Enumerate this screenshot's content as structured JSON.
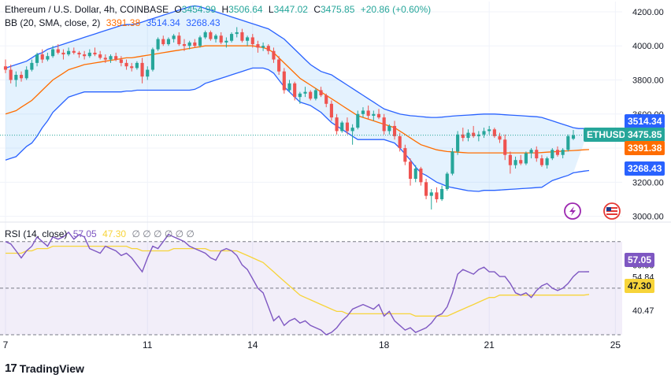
{
  "header": {
    "symbol": "Ethereum / U.S. Dollar, 4h, COINBASE",
    "o_label": "O",
    "open": "3454.99",
    "h_label": "H",
    "high": "3506.64",
    "l_label": "L",
    "low": "3447.02",
    "c_label": "C",
    "close": "3475.85",
    "change": "+20.86 (+0.60%)",
    "bb_label": "BB (20, SMA, close, 2)",
    "bb_mid": "3391.38",
    "bb_upper": "3514.34",
    "bb_lower": "3268.43",
    "rsi_label": "RSI (14, close)",
    "rsi_value": "57.05",
    "rsi_ma": "47.30",
    "rsi_placeholders": "∅ ∅ ∅ ∅ ∅ ∅"
  },
  "badges": {
    "ticker": "ETHUSD",
    "upper": "3514.34",
    "last": "3475.85",
    "mid": "3391.38",
    "lower": "3268.43",
    "rsi": "57.05",
    "rsi_ma": "47.30"
  },
  "branding": {
    "text": "TradingView"
  },
  "colors": {
    "up": "#26a69a",
    "down": "#ef5350",
    "bb_band": "#2962ff",
    "bb_mid": "#ff6d00",
    "rsi": "#7e57c2",
    "rsi_ma": "#f7d43a",
    "ticker_bg": "#26a69a"
  },
  "chart_data": [
    {
      "type": "candlestick",
      "title": "Ethereum / U.S. Dollar, 4h, COINBASE",
      "x_tick_labels": [
        "7",
        "11",
        "14",
        "18",
        "21",
        "25"
      ],
      "x_tick_index": [
        0,
        27,
        47,
        72,
        92,
        116
      ],
      "y_ticks": [
        3000,
        3200,
        3400,
        3600,
        3800,
        4000,
        4200
      ],
      "ylim": [
        2975,
        4260
      ],
      "last_price": 3475.85,
      "candles": [
        [
          3880,
          3920,
          3840,
          3860
        ],
        [
          3860,
          3890,
          3780,
          3800
        ],
        [
          3800,
          3850,
          3760,
          3830
        ],
        [
          3830,
          3850,
          3790,
          3810
        ],
        [
          3810,
          3880,
          3800,
          3860
        ],
        [
          3860,
          3920,
          3850,
          3900
        ],
        [
          3900,
          3960,
          3880,
          3950
        ],
        [
          3950,
          3980,
          3900,
          3920
        ],
        [
          3920,
          3960,
          3910,
          3940
        ],
        [
          3940,
          4000,
          3930,
          3980
        ],
        [
          3980,
          4010,
          3950,
          3960
        ],
        [
          3960,
          3980,
          3920,
          3950
        ],
        [
          3950,
          3990,
          3940,
          3970
        ],
        [
          3970,
          3990,
          3950,
          3960
        ],
        [
          3960,
          3970,
          3930,
          3950
        ],
        [
          3950,
          3970,
          3920,
          3940
        ],
        [
          3940,
          3980,
          3930,
          3960
        ],
        [
          3960,
          3990,
          3940,
          3950
        ],
        [
          3950,
          3970,
          3920,
          3930
        ],
        [
          3930,
          3950,
          3900,
          3920
        ],
        [
          3920,
          3950,
          3900,
          3940
        ],
        [
          3940,
          3960,
          3910,
          3920
        ],
        [
          3920,
          3940,
          3880,
          3900
        ],
        [
          3900,
          3920,
          3860,
          3880
        ],
        [
          3880,
          3900,
          3850,
          3870
        ],
        [
          3870,
          3910,
          3860,
          3900
        ],
        [
          3900,
          3930,
          3780,
          3820
        ],
        [
          3820,
          3880,
          3800,
          3860
        ],
        [
          3860,
          3990,
          3850,
          3980
        ],
        [
          3980,
          4050,
          3970,
          4040
        ],
        [
          4040,
          4060,
          4000,
          4010
        ],
        [
          4010,
          4050,
          4000,
          4040
        ],
        [
          4040,
          4070,
          4020,
          4060
        ],
        [
          4060,
          4080,
          4000,
          4010
        ],
        [
          4010,
          4040,
          3970,
          4000
        ],
        [
          4000,
          4030,
          3980,
          4020
        ],
        [
          4020,
          4040,
          3990,
          4000
        ],
        [
          4000,
          4060,
          3990,
          4050
        ],
        [
          4050,
          4090,
          4040,
          4080
        ],
        [
          4080,
          4090,
          4030,
          4040
        ],
        [
          4040,
          4070,
          4020,
          4060
        ],
        [
          4060,
          4080,
          4010,
          4020
        ],
        [
          4020,
          4050,
          3990,
          4030
        ],
        [
          4030,
          4080,
          4020,
          4070
        ],
        [
          4070,
          4110,
          4050,
          4080
        ],
        [
          4080,
          4100,
          4020,
          4030
        ],
        [
          4030,
          4060,
          4000,
          4050
        ],
        [
          4050,
          4070,
          3990,
          4010
        ],
        [
          4010,
          4030,
          3960,
          3990
        ],
        [
          3990,
          4020,
          3970,
          4000
        ],
        [
          4000,
          4010,
          3950,
          3970
        ],
        [
          3970,
          3990,
          3900,
          3920
        ],
        [
          3920,
          3940,
          3830,
          3850
        ],
        [
          3850,
          3870,
          3720,
          3740
        ],
        [
          3740,
          3800,
          3730,
          3780
        ],
        [
          3780,
          3790,
          3680,
          3700
        ],
        [
          3700,
          3730,
          3660,
          3720
        ],
        [
          3720,
          3760,
          3700,
          3730
        ],
        [
          3730,
          3740,
          3680,
          3690
        ],
        [
          3690,
          3750,
          3680,
          3740
        ],
        [
          3740,
          3760,
          3700,
          3710
        ],
        [
          3710,
          3720,
          3640,
          3660
        ],
        [
          3660,
          3680,
          3560,
          3580
        ],
        [
          3580,
          3600,
          3480,
          3500
        ],
        [
          3500,
          3560,
          3490,
          3550
        ],
        [
          3550,
          3580,
          3480,
          3500
        ],
        [
          3500,
          3540,
          3420,
          3520
        ],
        [
          3520,
          3620,
          3510,
          3600
        ],
        [
          3600,
          3640,
          3580,
          3620
        ],
        [
          3620,
          3650,
          3570,
          3590
        ],
        [
          3590,
          3620,
          3560,
          3600
        ],
        [
          3600,
          3630,
          3570,
          3580
        ],
        [
          3580,
          3600,
          3480,
          3500
        ],
        [
          3500,
          3540,
          3480,
          3530
        ],
        [
          3530,
          3560,
          3450,
          3470
        ],
        [
          3470,
          3490,
          3380,
          3400
        ],
        [
          3400,
          3420,
          3300,
          3320
        ],
        [
          3320,
          3340,
          3180,
          3220
        ],
        [
          3220,
          3300,
          3200,
          3280
        ],
        [
          3280,
          3290,
          3180,
          3200
        ],
        [
          3200,
          3220,
          3100,
          3120
        ],
        [
          3120,
          3160,
          3040,
          3140
        ],
        [
          3140,
          3170,
          3080,
          3100
        ],
        [
          3100,
          3180,
          3090,
          3160
        ],
        [
          3160,
          3260,
          3150,
          3250
        ],
        [
          3250,
          3400,
          3240,
          3380
        ],
        [
          3380,
          3500,
          3360,
          3480
        ],
        [
          3480,
          3520,
          3440,
          3460
        ],
        [
          3460,
          3510,
          3440,
          3490
        ],
        [
          3490,
          3530,
          3460,
          3470
        ],
        [
          3470,
          3500,
          3440,
          3480
        ],
        [
          3480,
          3520,
          3460,
          3500
        ],
        [
          3500,
          3530,
          3480,
          3510
        ],
        [
          3510,
          3520,
          3460,
          3470
        ],
        [
          3470,
          3490,
          3430,
          3450
        ],
        [
          3450,
          3480,
          3330,
          3360
        ],
        [
          3360,
          3380,
          3250,
          3300
        ],
        [
          3300,
          3350,
          3280,
          3330
        ],
        [
          3330,
          3360,
          3300,
          3310
        ],
        [
          3310,
          3380,
          3300,
          3370
        ],
        [
          3370,
          3400,
          3340,
          3390
        ],
        [
          3390,
          3410,
          3320,
          3340
        ],
        [
          3340,
          3360,
          3290,
          3300
        ],
        [
          3300,
          3350,
          3280,
          3340
        ],
        [
          3340,
          3400,
          3330,
          3390
        ],
        [
          3390,
          3410,
          3350,
          3360
        ],
        [
          3360,
          3400,
          3340,
          3390
        ],
        [
          3390,
          3480,
          3380,
          3470
        ],
        [
          3454.99,
          3506.64,
          3447.02,
          3475.85
        ]
      ],
      "bb_upper": [
        3870,
        3880,
        3890,
        3900,
        3910,
        3930,
        3950,
        3960,
        3980,
        3990,
        4000,
        4010,
        4020,
        4030,
        4040,
        4050,
        4060,
        4070,
        4080,
        4090,
        4100,
        4110,
        4120,
        4125,
        4125,
        4130,
        4140,
        4150,
        4160,
        4170,
        4180,
        4190,
        4200,
        4210,
        4220,
        4230,
        4235,
        4230,
        4220,
        4210,
        4200,
        4190,
        4180,
        4170,
        4160,
        4150,
        4140,
        4130,
        4120,
        4110,
        4100,
        4080,
        4060,
        4040,
        4010,
        3980,
        3950,
        3920,
        3890,
        3870,
        3850,
        3840,
        3830,
        3810,
        3790,
        3770,
        3750,
        3730,
        3710,
        3690,
        3670,
        3650,
        3630,
        3620,
        3610,
        3600,
        3595,
        3590,
        3588,
        3585,
        3582,
        3580,
        3580,
        3582,
        3585,
        3588,
        3590,
        3592,
        3594,
        3596,
        3598,
        3600,
        3600,
        3600,
        3598,
        3596,
        3594,
        3592,
        3590,
        3588,
        3586,
        3584,
        3580,
        3570,
        3560,
        3550,
        3540,
        3530,
        3520,
        3515,
        3515,
        3514.34
      ],
      "bb_mid": [
        3600,
        3610,
        3620,
        3640,
        3660,
        3680,
        3710,
        3740,
        3770,
        3800,
        3820,
        3840,
        3860,
        3870,
        3880,
        3890,
        3895,
        3900,
        3905,
        3910,
        3915,
        3920,
        3925,
        3930,
        3930,
        3935,
        3940,
        3945,
        3950,
        3955,
        3960,
        3965,
        3970,
        3975,
        3980,
        3985,
        3990,
        3995,
        4000,
        4000,
        4000,
        4000,
        4000,
        4000,
        4000,
        4000,
        4000,
        4000,
        3995,
        3990,
        3980,
        3960,
        3930,
        3900,
        3870,
        3840,
        3810,
        3790,
        3770,
        3750,
        3730,
        3710,
        3690,
        3670,
        3650,
        3630,
        3610,
        3590,
        3580,
        3570,
        3560,
        3550,
        3540,
        3530,
        3520,
        3500,
        3480,
        3460,
        3440,
        3420,
        3410,
        3400,
        3390,
        3385,
        3380,
        3378,
        3376,
        3374,
        3372,
        3372,
        3372,
        3372,
        3372,
        3372,
        3372,
        3372,
        3372,
        3372,
        3372,
        3372,
        3372,
        3372,
        3374,
        3376,
        3378,
        3380,
        3382,
        3384,
        3386,
        3388,
        3390,
        3391.38
      ],
      "bb_lower": [
        3330,
        3340,
        3350,
        3380,
        3410,
        3430,
        3470,
        3520,
        3560,
        3610,
        3640,
        3670,
        3700,
        3710,
        3720,
        3730,
        3730,
        3730,
        3730,
        3730,
        3730,
        3730,
        3730,
        3735,
        3735,
        3740,
        3740,
        3740,
        3740,
        3740,
        3740,
        3740,
        3740,
        3740,
        3740,
        3740,
        3745,
        3760,
        3780,
        3790,
        3800,
        3810,
        3820,
        3830,
        3840,
        3850,
        3860,
        3870,
        3870,
        3870,
        3860,
        3840,
        3800,
        3760,
        3730,
        3700,
        3670,
        3660,
        3650,
        3630,
        3610,
        3580,
        3550,
        3530,
        3510,
        3490,
        3470,
        3450,
        3450,
        3450,
        3450,
        3450,
        3450,
        3440,
        3430,
        3400,
        3365,
        3330,
        3290,
        3255,
        3240,
        3220,
        3200,
        3188,
        3175,
        3168,
        3162,
        3156,
        3150,
        3148,
        3146,
        3152,
        3152,
        3152,
        3154,
        3156,
        3158,
        3160,
        3162,
        3164,
        3166,
        3168,
        3170,
        3190,
        3210,
        3220,
        3230,
        3240,
        3255,
        3260,
        3265,
        3268.43
      ]
    },
    {
      "type": "line",
      "title": "RSI (14, close)",
      "y_tick_labels": [
        "60.00",
        "54.84",
        "40.47"
      ],
      "y_ticks": [
        60,
        54.84,
        40.47
      ],
      "ylim": [
        30,
        77
      ],
      "hlines": [
        70,
        50,
        30
      ],
      "series": [
        {
          "name": "RSI",
          "values": [
            70,
            69,
            66,
            63,
            66,
            68,
            72,
            70,
            68,
            72,
            71,
            72,
            74,
            71,
            73,
            72,
            67,
            66,
            65,
            68,
            67,
            66,
            64,
            65,
            63,
            60,
            57,
            63,
            68,
            67,
            70,
            73,
            72,
            71,
            70,
            68,
            67,
            66,
            65,
            63,
            62,
            66,
            67,
            66,
            64,
            60,
            58,
            54,
            50,
            48,
            42,
            36,
            38,
            34,
            36,
            37,
            35,
            36,
            34,
            33,
            32,
            30,
            31,
            33,
            36,
            38,
            41,
            42,
            43,
            42,
            41,
            43,
            38,
            40,
            36,
            34,
            32,
            33,
            31,
            32,
            33,
            35,
            38,
            39,
            42,
            48,
            56,
            58,
            57,
            56,
            58,
            59,
            57,
            57,
            55,
            55,
            52,
            48,
            47,
            48,
            46,
            49,
            51,
            52,
            50,
            49,
            50,
            52,
            55,
            57,
            57,
            57.05
          ]
        },
        {
          "name": "RSI MA",
          "values": [
            65,
            65,
            65,
            65,
            66,
            66,
            67,
            67,
            67,
            68,
            68,
            68,
            68,
            68,
            68,
            68,
            68,
            68,
            68,
            68,
            68,
            68,
            68,
            68,
            67,
            67,
            66,
            66,
            66,
            66,
            66,
            66,
            67,
            67,
            67,
            67,
            67,
            67,
            67,
            66,
            66,
            66,
            66,
            66,
            66,
            65,
            64,
            63,
            62,
            61,
            59,
            57,
            55,
            53,
            51,
            49,
            47,
            46,
            45,
            44,
            43,
            42,
            41,
            40,
            40,
            39,
            39,
            39,
            39,
            39,
            39,
            39,
            39,
            39,
            39,
            39,
            39,
            39,
            38,
            38,
            38,
            38,
            38,
            38,
            38,
            39,
            40,
            41,
            42,
            43,
            44,
            45,
            46,
            46,
            47,
            47,
            47,
            47,
            47,
            47,
            47,
            47,
            47,
            47,
            47,
            47,
            47,
            47,
            47,
            47,
            47,
            47.3
          ]
        }
      ]
    }
  ]
}
